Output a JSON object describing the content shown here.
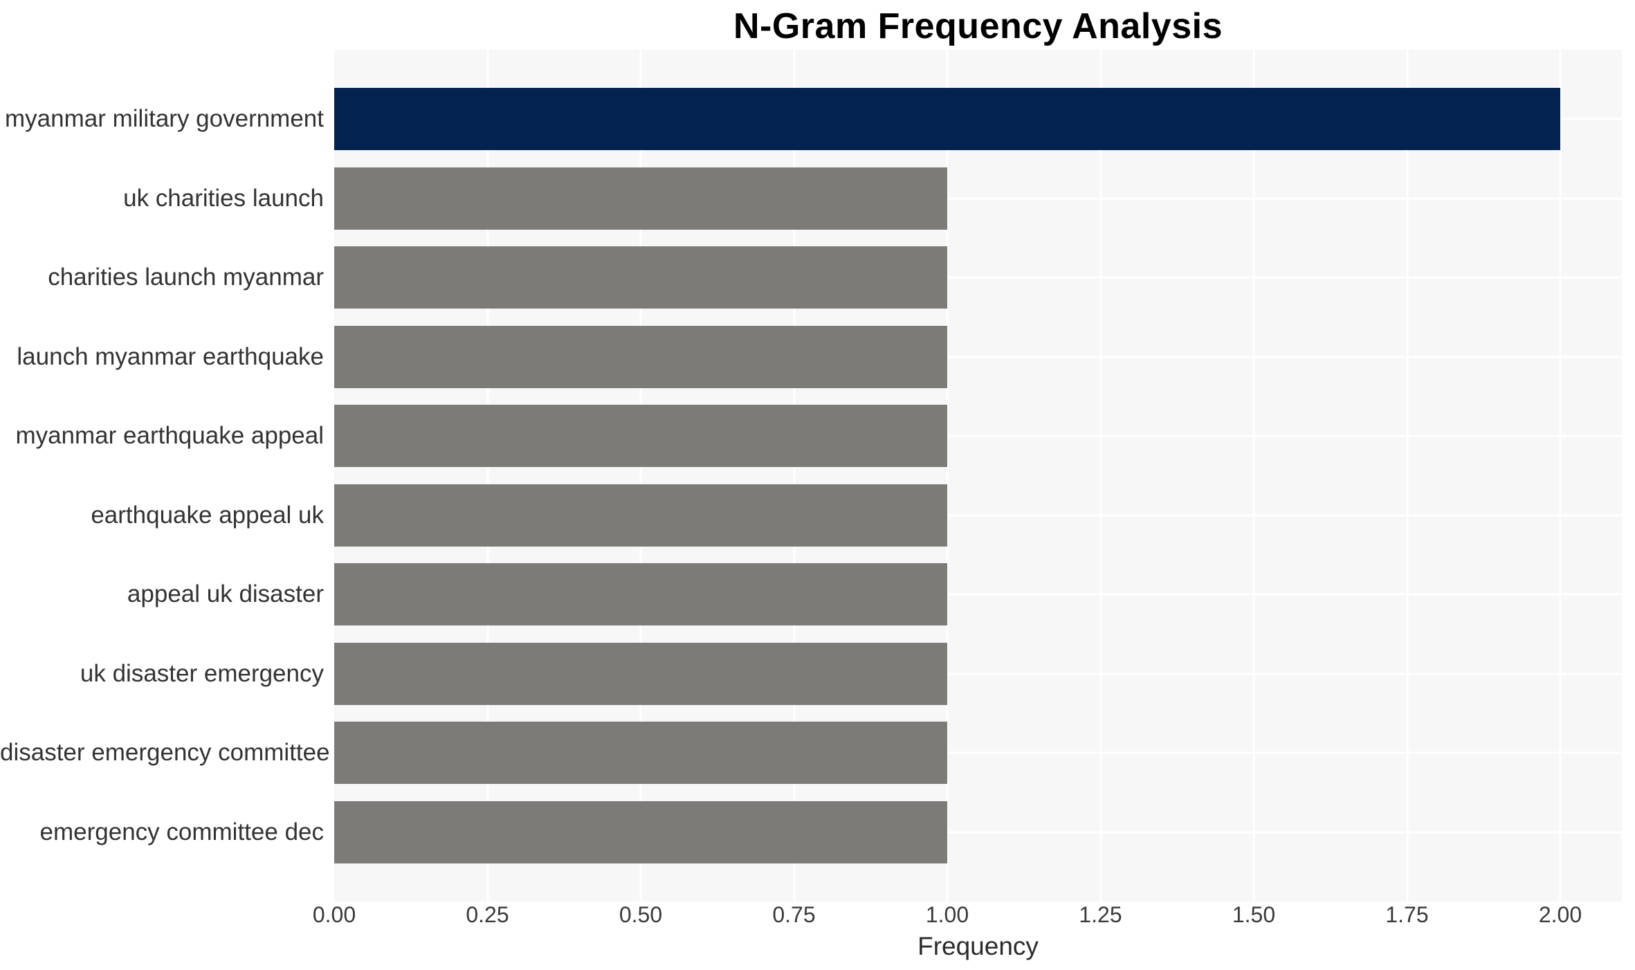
{
  "title": "N-Gram Frequency Analysis",
  "chart_data": {
    "type": "bar",
    "orientation": "horizontal",
    "title": "N-Gram Frequency Analysis",
    "xlabel": "Frequency",
    "ylabel": "",
    "categories": [
      "myanmar military government",
      "uk charities launch",
      "charities launch myanmar",
      "launch myanmar earthquake",
      "myanmar earthquake appeal",
      "earthquake appeal uk",
      "appeal uk disaster",
      "uk disaster emergency",
      "disaster emergency committee",
      "emergency committee dec"
    ],
    "values": [
      2,
      1,
      1,
      1,
      1,
      1,
      1,
      1,
      1,
      1
    ],
    "xlim": [
      0,
      2.1
    ],
    "xticks": [
      {
        "value": 0.0,
        "label": "0.00"
      },
      {
        "value": 0.25,
        "label": "0.25"
      },
      {
        "value": 0.5,
        "label": "0.50"
      },
      {
        "value": 0.75,
        "label": "0.75"
      },
      {
        "value": 1.0,
        "label": "1.00"
      },
      {
        "value": 1.25,
        "label": "1.25"
      },
      {
        "value": 1.5,
        "label": "1.50"
      },
      {
        "value": 1.75,
        "label": "1.75"
      },
      {
        "value": 2.0,
        "label": "2.00"
      }
    ],
    "grid": {
      "vertical": true,
      "horizontal": true,
      "position": "under-bars"
    },
    "legend": null,
    "bar_colors": [
      "#03224e",
      "#7d7b77",
      "#7d7b77",
      "#7d7b77",
      "#7d7b77",
      "#7d7b77",
      "#7d7b77",
      "#7d7b77",
      "#7d7b77",
      "#7d7b77"
    ],
    "colors": {
      "highlight_bar": "#03224e",
      "default_bar": "#7d7b77",
      "panel_background": "#f7f7f8",
      "page_background": "#ffffff",
      "grid_line": "#ffffff",
      "tick_text": "#3a3a3a",
      "category_text": "#333333",
      "axis_label_text": "#2b2b2b",
      "title_text": "#000000"
    }
  }
}
